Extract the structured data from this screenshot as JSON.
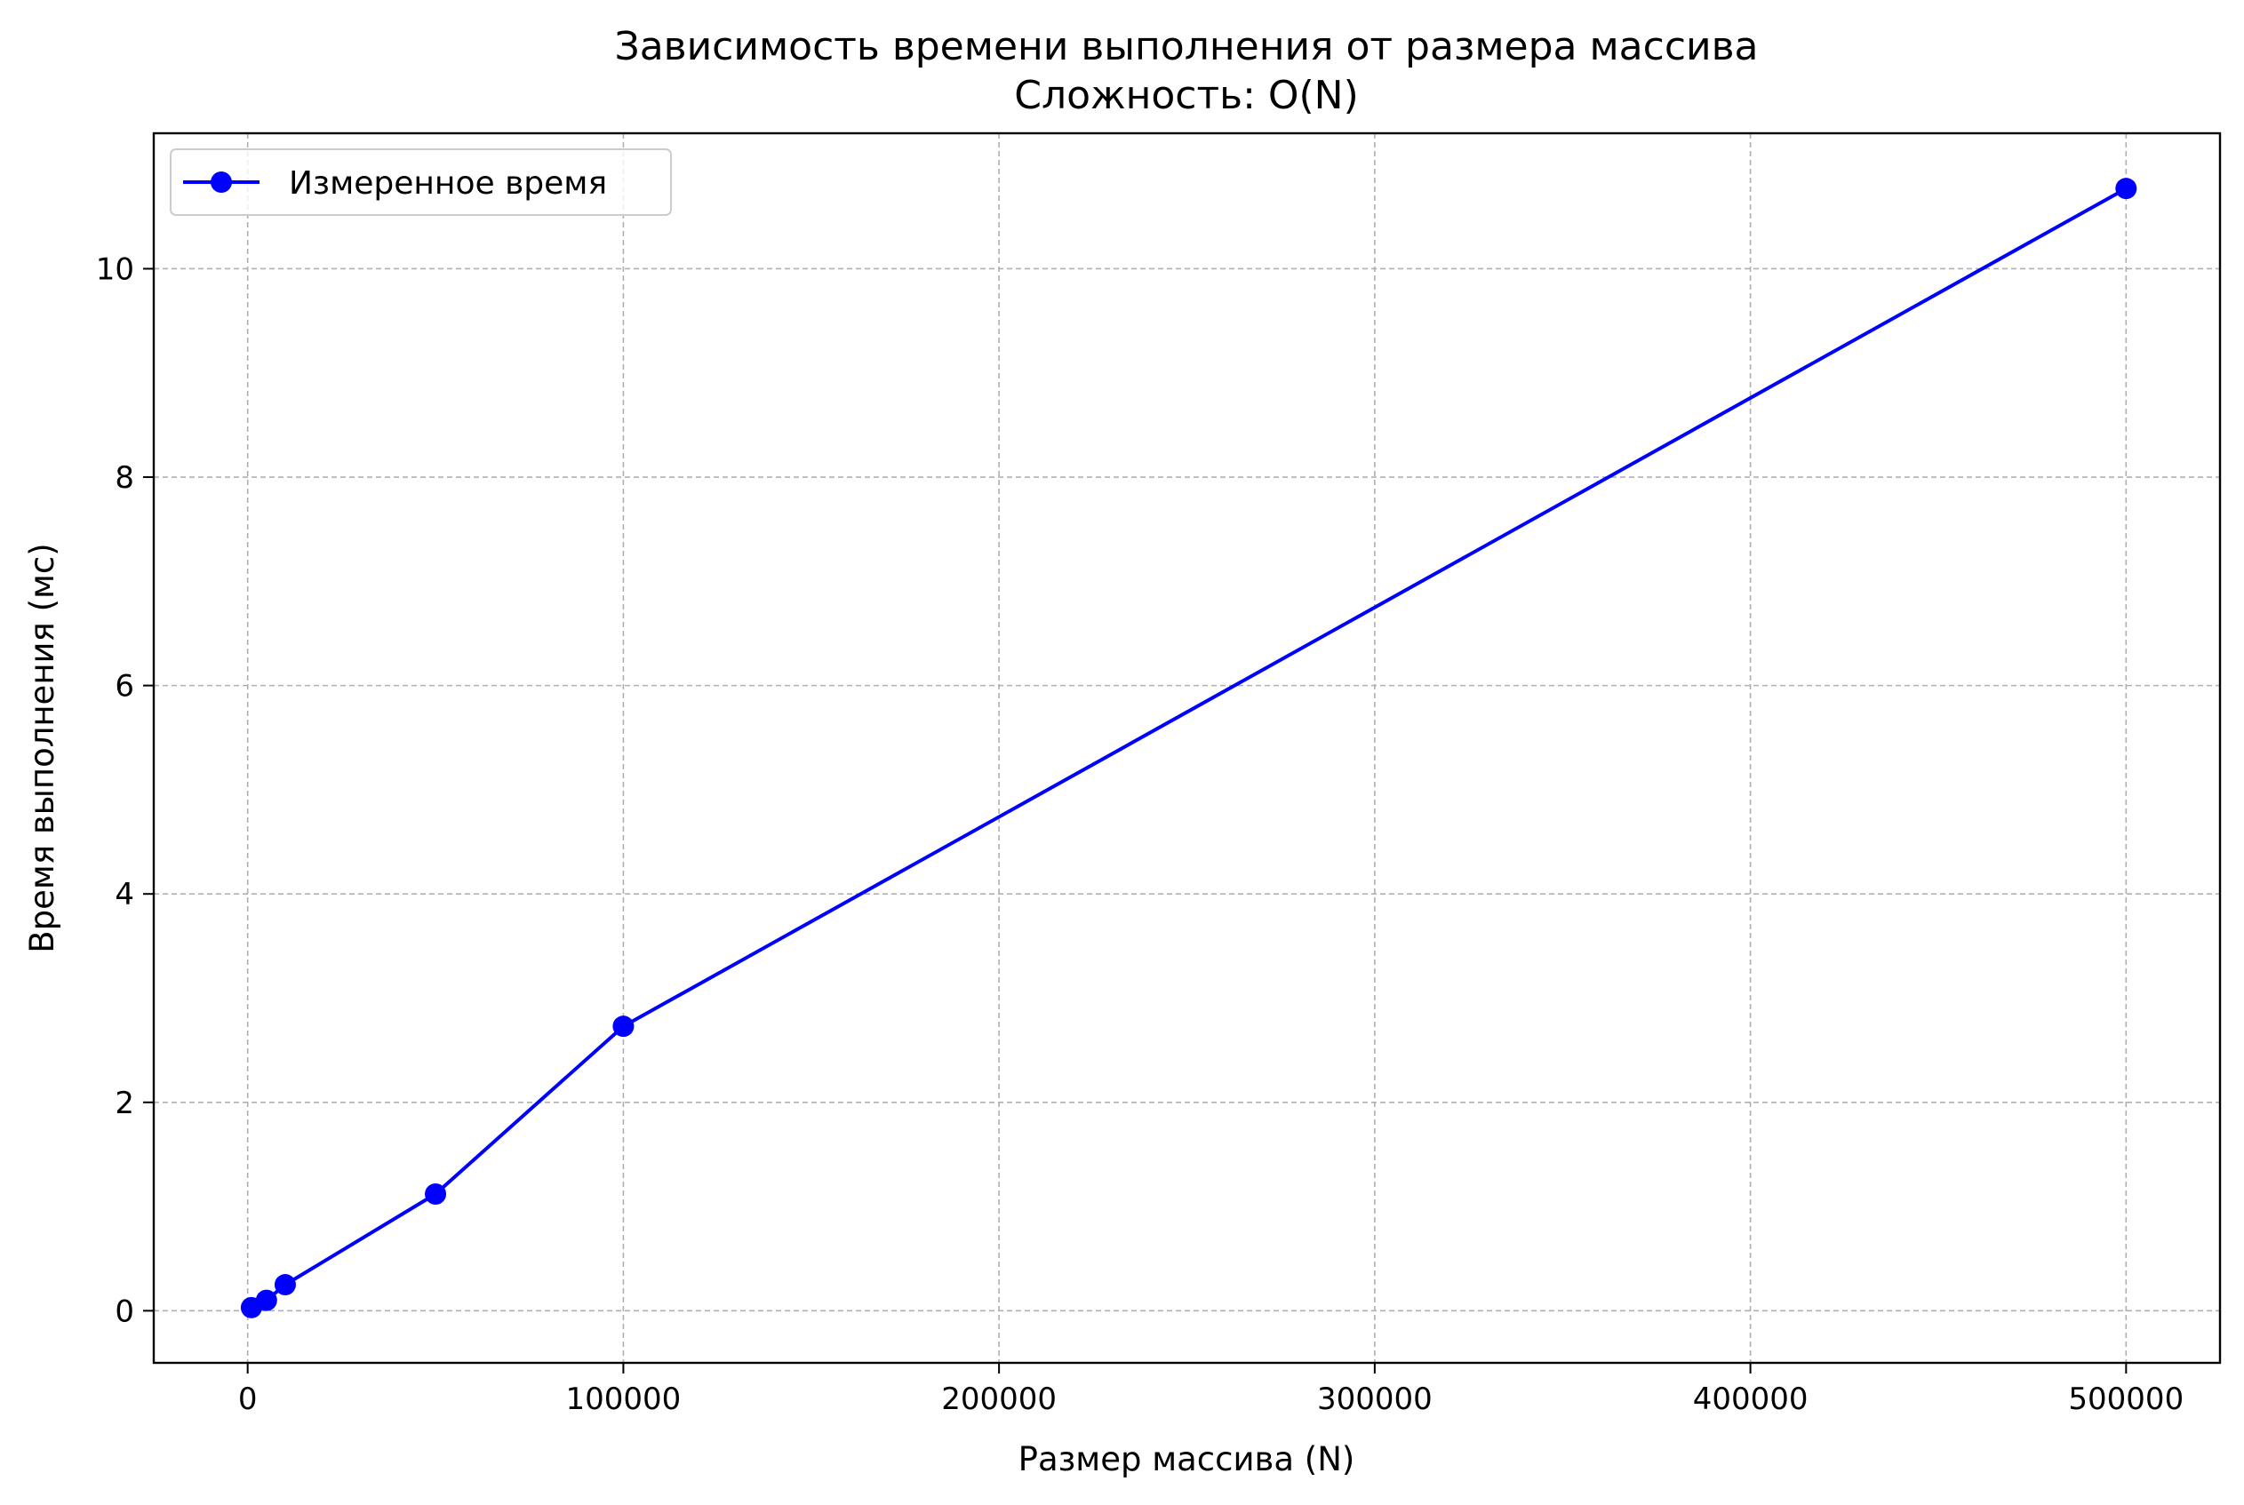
{
  "chart_data": {
    "type": "line",
    "title": "Зависимость времени выполнения от размера массива",
    "subtitle": "Сложность: O(N)",
    "xlabel": "Размер массива (N)",
    "ylabel": "Время выполнения (мс)",
    "xlim": [
      -25000,
      525000
    ],
    "ylim": [
      -0.5,
      11.3
    ],
    "xticks": [
      0,
      100000,
      200000,
      300000,
      400000,
      500000
    ],
    "xtick_labels": [
      "0",
      "100000",
      "200000",
      "300000",
      "400000",
      "500000"
    ],
    "yticks": [
      0,
      2,
      4,
      6,
      8,
      10
    ],
    "ytick_labels": [
      "0",
      "2",
      "4",
      "6",
      "8",
      "10"
    ],
    "grid": true,
    "legend_position": "top-left",
    "series": [
      {
        "name": "Измеренное время",
        "color": "#0000ff",
        "marker": "circle",
        "x": [
          1000,
          5000,
          10000,
          50000,
          100000,
          500000
        ],
        "y": [
          0.03,
          0.1,
          0.25,
          1.12,
          2.73,
          10.77
        ]
      }
    ]
  }
}
